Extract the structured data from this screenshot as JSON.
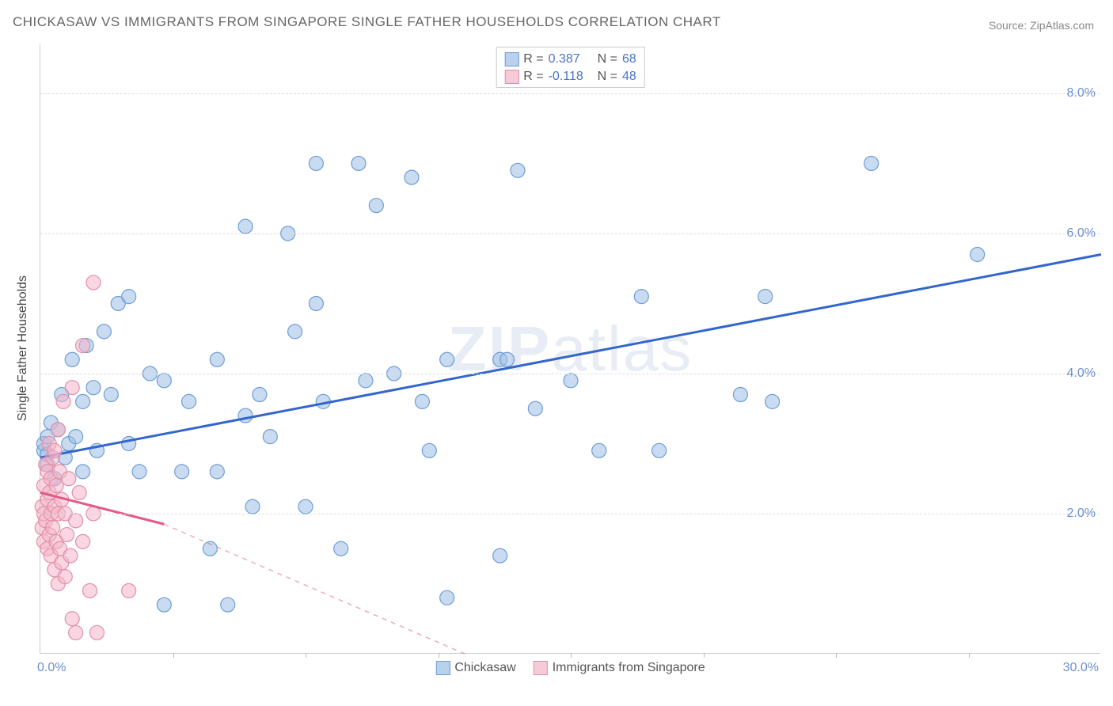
{
  "title": "CHICKASAW VS IMMIGRANTS FROM SINGAPORE SINGLE FATHER HOUSEHOLDS CORRELATION CHART",
  "source": "Source: ZipAtlas.com",
  "yaxis_title": "Single Father Households",
  "watermark_bold": "ZIP",
  "watermark_light": "atlas",
  "chart": {
    "type": "scatter",
    "xlim": [
      0,
      30
    ],
    "ylim": [
      0,
      8.7
    ],
    "x_tick_labels": [
      {
        "pos": 0,
        "label": "0.0%"
      },
      {
        "pos": 30,
        "label": "30.0%"
      }
    ],
    "x_minor_ticks": [
      3.75,
      7.5,
      11.25,
      15,
      18.75,
      22.5,
      26.25
    ],
    "y_gridlines": [
      2,
      4,
      6,
      8
    ],
    "y_tick_labels": [
      {
        "pos": 2,
        "label": "2.0%"
      },
      {
        "pos": 4,
        "label": "4.0%"
      },
      {
        "pos": 6,
        "label": "6.0%"
      },
      {
        "pos": 8,
        "label": "8.0%"
      }
    ],
    "background_color": "#ffffff",
    "grid_color": "#dddddd",
    "axis_label_color": "#6b8fd4",
    "marker_radius": 9,
    "marker_stroke_width": 1.2,
    "series": [
      {
        "name": "Chickasaw",
        "fill": "rgba(156,190,230,0.55)",
        "stroke": "#6e9ed4",
        "trend_color": "#3366cc",
        "trend": {
          "x1": 0,
          "y1": 2.8,
          "x2_solid": 30,
          "y2_solid": 5.7
        },
        "R": "0.387",
        "N": "68",
        "points": [
          [
            0.1,
            2.9
          ],
          [
            0.1,
            3.0
          ],
          [
            0.2,
            2.7
          ],
          [
            0.2,
            3.1
          ],
          [
            0.3,
            3.3
          ],
          [
            0.4,
            2.5
          ],
          [
            0.5,
            3.2
          ],
          [
            0.6,
            3.7
          ],
          [
            0.7,
            2.8
          ],
          [
            0.8,
            3.0
          ],
          [
            0.9,
            4.2
          ],
          [
            1.0,
            3.1
          ],
          [
            1.2,
            3.6
          ],
          [
            1.3,
            4.4
          ],
          [
            1.5,
            3.8
          ],
          [
            1.6,
            2.9
          ],
          [
            1.8,
            4.6
          ],
          [
            1.2,
            2.6
          ],
          [
            2.0,
            3.7
          ],
          [
            2.2,
            5.0
          ],
          [
            2.5,
            3.0
          ],
          [
            2.5,
            5.1
          ],
          [
            2.8,
            2.6
          ],
          [
            3.1,
            4.0
          ],
          [
            3.5,
            3.9
          ],
          [
            3.5,
            0.7
          ],
          [
            4.0,
            2.6
          ],
          [
            4.2,
            3.6
          ],
          [
            4.8,
            1.5
          ],
          [
            5.0,
            2.6
          ],
          [
            5.0,
            4.2
          ],
          [
            5.3,
            0.7
          ],
          [
            5.8,
            3.4
          ],
          [
            6.0,
            2.1
          ],
          [
            6.2,
            3.7
          ],
          [
            5.8,
            6.1
          ],
          [
            6.5,
            3.1
          ],
          [
            7.0,
            6.0
          ],
          [
            7.2,
            4.6
          ],
          [
            7.5,
            2.1
          ],
          [
            7.8,
            5.0
          ],
          [
            7.8,
            7.0
          ],
          [
            8.0,
            3.6
          ],
          [
            8.5,
            1.5
          ],
          [
            9.0,
            7.0
          ],
          [
            9.2,
            3.9
          ],
          [
            9.5,
            6.4
          ],
          [
            10.0,
            4.0
          ],
          [
            10.5,
            6.8
          ],
          [
            10.8,
            3.6
          ],
          [
            11.0,
            2.9
          ],
          [
            11.5,
            4.2
          ],
          [
            11.5,
            0.8
          ],
          [
            13.0,
            1.4
          ],
          [
            13.0,
            4.2
          ],
          [
            13.2,
            4.2
          ],
          [
            13.5,
            6.9
          ],
          [
            14.0,
            3.5
          ],
          [
            15.0,
            3.9
          ],
          [
            15.8,
            2.9
          ],
          [
            17.0,
            5.1
          ],
          [
            17.5,
            2.9
          ],
          [
            19.8,
            3.7
          ],
          [
            20.5,
            5.1
          ],
          [
            20.7,
            3.6
          ],
          [
            23.5,
            7.0
          ],
          [
            26.5,
            5.7
          ],
          [
            0.2,
            2.85
          ]
        ]
      },
      {
        "name": "Immigrants from Singapore",
        "fill": "rgba(244,180,200,0.55)",
        "stroke": "#e290a8",
        "trend_color": "#e05a8a",
        "trend": {
          "x1": 0,
          "y1": 2.3,
          "x2_solid": 3.5,
          "y2_solid": 1.85,
          "x2_dash": 12,
          "y2_dash": 0.0
        },
        "R": "-0.118",
        "N": "48",
        "points": [
          [
            0.05,
            1.8
          ],
          [
            0.05,
            2.1
          ],
          [
            0.1,
            1.6
          ],
          [
            0.1,
            2.0
          ],
          [
            0.1,
            2.4
          ],
          [
            0.15,
            1.9
          ],
          [
            0.15,
            2.7
          ],
          [
            0.2,
            1.5
          ],
          [
            0.2,
            2.2
          ],
          [
            0.2,
            2.6
          ],
          [
            0.25,
            1.7
          ],
          [
            0.25,
            2.3
          ],
          [
            0.25,
            3.0
          ],
          [
            0.3,
            1.4
          ],
          [
            0.3,
            2.0
          ],
          [
            0.3,
            2.5
          ],
          [
            0.35,
            1.8
          ],
          [
            0.35,
            2.8
          ],
          [
            0.4,
            1.2
          ],
          [
            0.4,
            2.1
          ],
          [
            0.4,
            2.9
          ],
          [
            0.45,
            1.6
          ],
          [
            0.45,
            2.4
          ],
          [
            0.5,
            1.0
          ],
          [
            0.5,
            2.0
          ],
          [
            0.5,
            3.2
          ],
          [
            0.55,
            1.5
          ],
          [
            0.55,
            2.6
          ],
          [
            0.6,
            1.3
          ],
          [
            0.6,
            2.2
          ],
          [
            0.65,
            3.6
          ],
          [
            0.7,
            1.1
          ],
          [
            0.7,
            2.0
          ],
          [
            0.75,
            1.7
          ],
          [
            0.8,
            2.5
          ],
          [
            0.85,
            1.4
          ],
          [
            0.9,
            3.8
          ],
          [
            0.9,
            0.5
          ],
          [
            1.0,
            1.9
          ],
          [
            1.0,
            0.3
          ],
          [
            1.1,
            2.3
          ],
          [
            1.2,
            1.6
          ],
          [
            1.2,
            4.4
          ],
          [
            1.4,
            0.9
          ],
          [
            1.5,
            2.0
          ],
          [
            1.5,
            5.3
          ],
          [
            1.6,
            0.3
          ],
          [
            2.5,
            0.9
          ]
        ]
      }
    ]
  },
  "stats_box": {
    "rows": [
      {
        "swatch_fill": "rgba(156,190,230,0.7)",
        "swatch_stroke": "#6e9ed4",
        "r_label": "R =",
        "r_val": "0.387",
        "n_label": "N =",
        "n_val": "68"
      },
      {
        "swatch_fill": "rgba(244,180,200,0.7)",
        "swatch_stroke": "#e290a8",
        "r_label": "R =",
        "r_val": "-0.118",
        "n_label": "N =",
        "n_val": "48"
      }
    ]
  },
  "bottom_legend": [
    {
      "swatch_fill": "rgba(156,190,230,0.7)",
      "swatch_stroke": "#6e9ed4",
      "label": "Chickasaw"
    },
    {
      "swatch_fill": "rgba(244,180,200,0.7)",
      "swatch_stroke": "#e290a8",
      "label": "Immigrants from Singapore"
    }
  ]
}
